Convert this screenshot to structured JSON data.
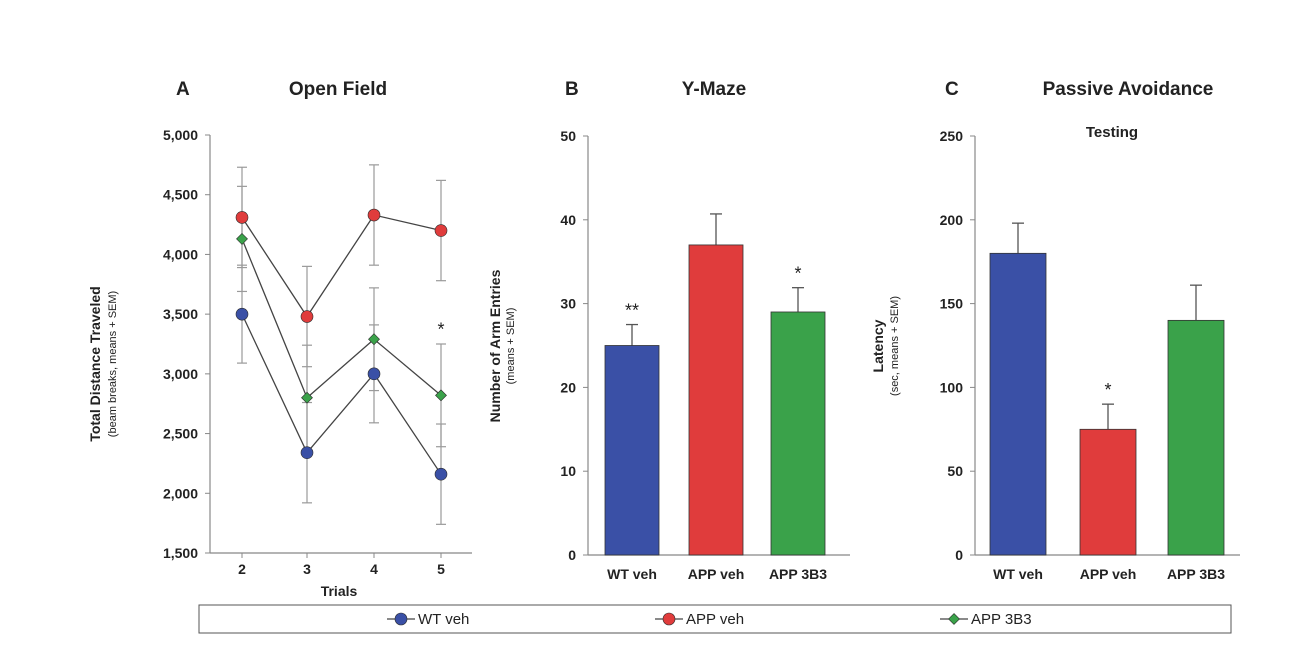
{
  "chart_data": [
    {
      "type": "line",
      "panel": "A",
      "title": "Open Field",
      "xlabel": "Trials",
      "ylabel": "Total Distance Traveled",
      "ylabel_sub": "(beam breaks, means + SEM)",
      "x": [
        2,
        3,
        4,
        5
      ],
      "x_ticklabels": [
        "2",
        "3",
        "4",
        "5"
      ],
      "ylim": [
        1500,
        5000
      ],
      "yticks": [
        1500,
        2000,
        2500,
        3000,
        3500,
        4000,
        4500,
        5000
      ],
      "ytick_labels": [
        "1,500",
        "2,000",
        "2,500",
        "3,000",
        "3,500",
        "4,000",
        "4,500",
        "5,000"
      ],
      "series": [
        {
          "name": "WT veh",
          "color": "#3a50a6",
          "marker": "circle",
          "values": [
            3500,
            2340,
            3000,
            2160
          ],
          "errors": [
            410,
            420,
            410,
            420
          ]
        },
        {
          "name": "APP veh",
          "color": "#e03c3c",
          "marker": "circle",
          "values": [
            4310,
            3480,
            4330,
            4200
          ],
          "errors": [
            420,
            420,
            420,
            420
          ]
        },
        {
          "name": "APP 3B3",
          "color": "#3aa24a",
          "marker": "diamond",
          "values": [
            4130,
            2800,
            3290,
            2820
          ],
          "errors": [
            440,
            440,
            430,
            430
          ]
        }
      ],
      "annotations": [
        {
          "text": "*",
          "x": 5,
          "y": 3380
        }
      ]
    },
    {
      "type": "bar",
      "panel": "B",
      "title": "Y-Maze",
      "ylabel": "Number of Arm Entries",
      "ylabel_sub": "(means + SEM)",
      "categories": [
        "WT veh",
        "APP veh",
        "APP 3B3"
      ],
      "values": [
        25,
        37,
        29
      ],
      "errors": [
        2.5,
        3.7,
        2.9
      ],
      "colors": [
        "#3a50a6",
        "#e03c3c",
        "#3aa24a"
      ],
      "ylim": [
        0,
        50
      ],
      "yticks": [
        0,
        10,
        20,
        30,
        40,
        50
      ],
      "ytick_labels": [
        "0",
        "10",
        "20",
        "30",
        "40",
        "50"
      ],
      "annotations": [
        "**",
        "",
        "*"
      ]
    },
    {
      "type": "bar",
      "panel": "C",
      "title": "Passive Avoidance",
      "subtitle": "Testing",
      "ylabel": "Latency",
      "ylabel_sub": "(sec, means + SEM)",
      "categories": [
        "WT veh",
        "APP veh",
        "APP 3B3"
      ],
      "values": [
        180,
        75,
        140
      ],
      "errors": [
        18,
        15,
        21
      ],
      "colors": [
        "#3a50a6",
        "#e03c3c",
        "#3aa24a"
      ],
      "ylim": [
        0,
        250
      ],
      "yticks": [
        0,
        50,
        100,
        150,
        200,
        250
      ],
      "ytick_labels": [
        "0",
        "50",
        "100",
        "150",
        "200",
        "250"
      ],
      "annotations": [
        "",
        "*",
        ""
      ]
    }
  ],
  "legend": {
    "placement": "bottom",
    "items": [
      {
        "label": "WT veh",
        "color": "#3a50a6",
        "marker": "circle"
      },
      {
        "label": "APP veh",
        "color": "#e03c3c",
        "marker": "circle"
      },
      {
        "label": "APP 3B3",
        "color": "#3aa24a",
        "marker": "diamond"
      }
    ]
  }
}
